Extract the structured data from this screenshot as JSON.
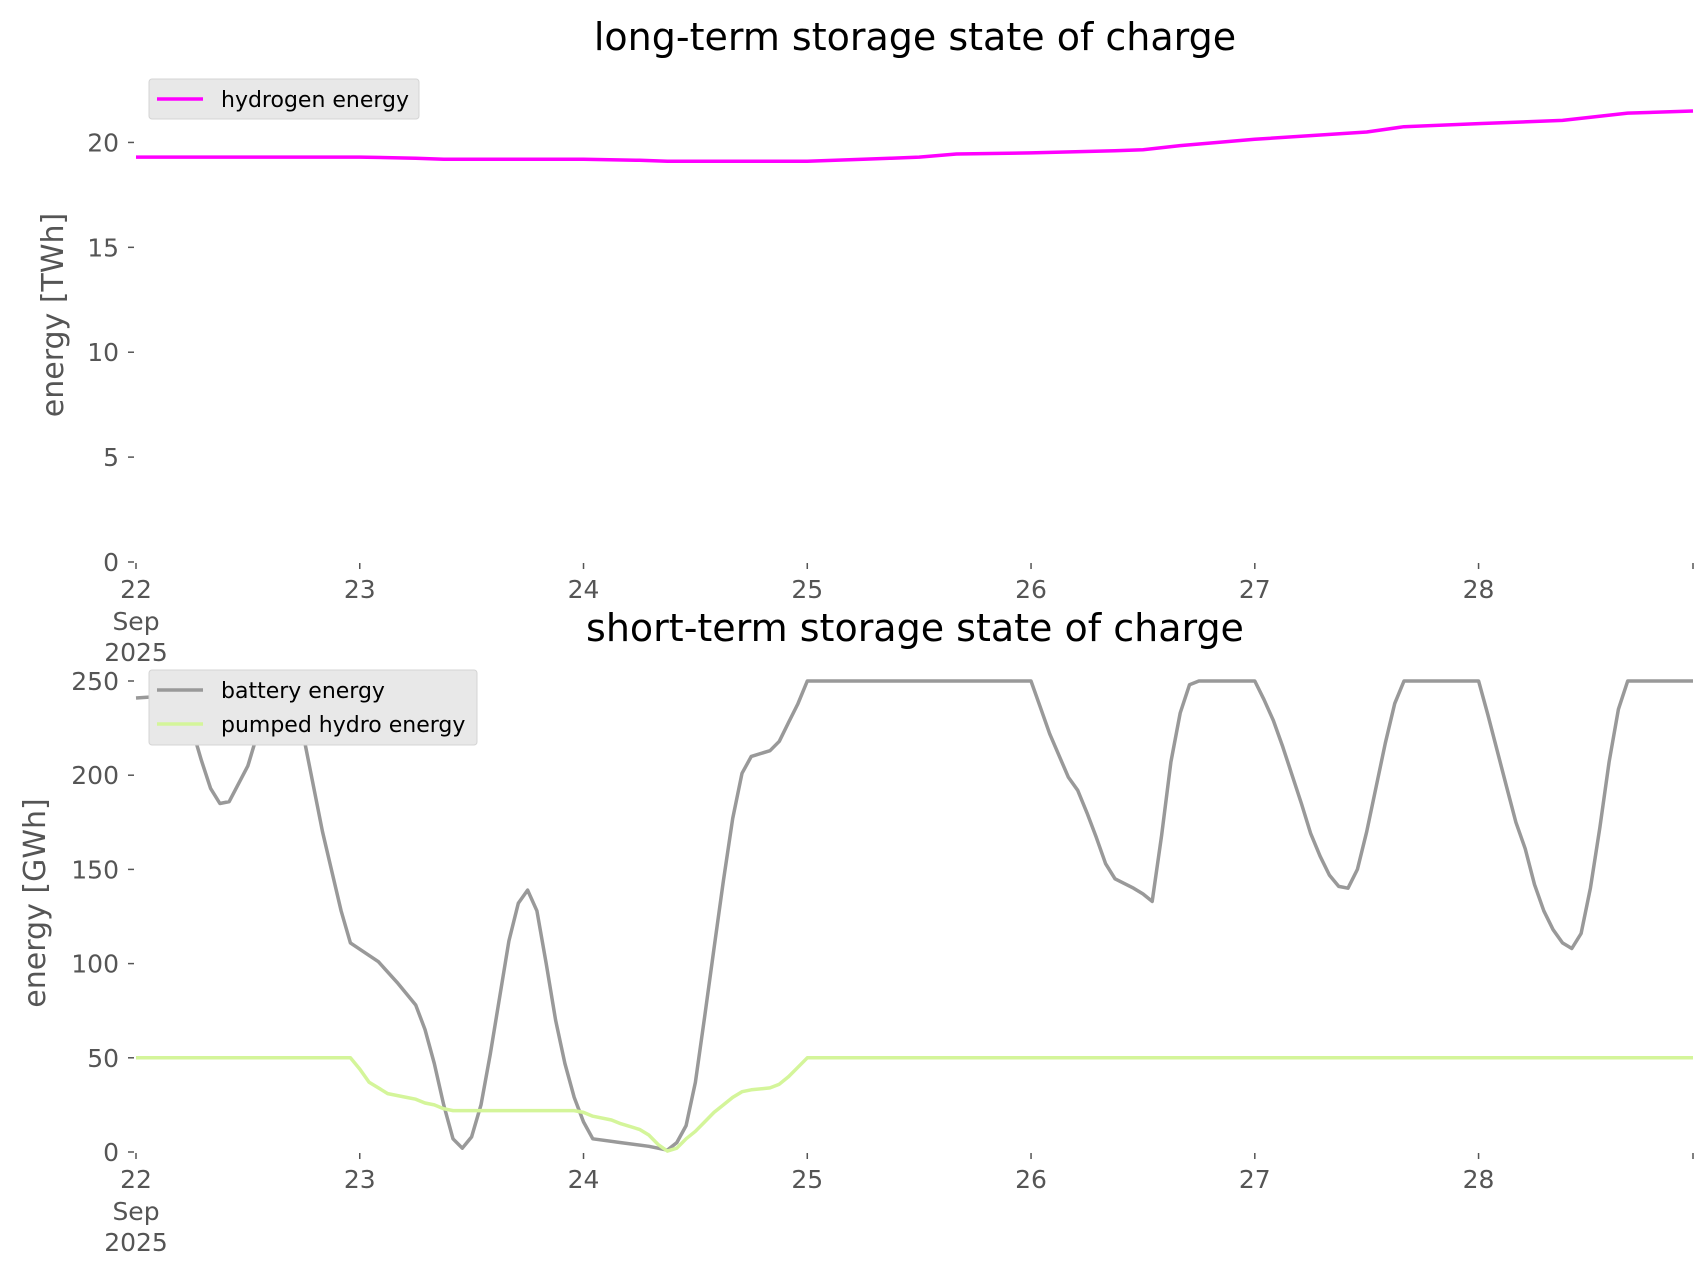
{
  "chart_data": [
    {
      "type": "line",
      "title": "long-term storage state of charge",
      "xlabel": "",
      "ylabel": "energy [TWh]",
      "ylim": [
        0,
        22.5
      ],
      "yticks": [
        "0",
        "5",
        "10",
        "15",
        "20"
      ],
      "xticks": [
        {
          "date": "2025-09-22",
          "label": "22",
          "sub": [
            "Sep",
            "2025"
          ]
        },
        {
          "date": "2025-09-23",
          "label": "23"
        },
        {
          "date": "2025-09-24",
          "label": "24"
        },
        {
          "date": "2025-09-25",
          "label": "25"
        },
        {
          "date": "2025-09-26",
          "label": "26"
        },
        {
          "date": "2025-09-27",
          "label": "27"
        },
        {
          "date": "2025-09-28",
          "label": "28"
        }
      ],
      "xlim": [
        "2025-09-22 00:00",
        "2025-09-28 23:00"
      ],
      "grid": false,
      "legend_position": "top-left",
      "series": [
        {
          "name": "hydrogen energy",
          "color": "#ff00ff",
          "points": [
            [
              "2025-09-22 00:00",
              19.3
            ],
            [
              "2025-09-22 12:00",
              19.3
            ],
            [
              "2025-09-23 00:00",
              19.3
            ],
            [
              "2025-09-23 06:00",
              19.25
            ],
            [
              "2025-09-23 09:00",
              19.2
            ],
            [
              "2025-09-23 18:00",
              19.2
            ],
            [
              "2025-09-24 00:00",
              19.2
            ],
            [
              "2025-09-24 06:00",
              19.15
            ],
            [
              "2025-09-24 09:00",
              19.1
            ],
            [
              "2025-09-24 18:00",
              19.1
            ],
            [
              "2025-09-25 00:00",
              19.1
            ],
            [
              "2025-09-25 06:00",
              19.2
            ],
            [
              "2025-09-25 09:00",
              19.25
            ],
            [
              "2025-09-25 12:00",
              19.3
            ],
            [
              "2025-09-25 16:00",
              19.45
            ],
            [
              "2025-09-26 00:00",
              19.5
            ],
            [
              "2025-09-26 09:00",
              19.6
            ],
            [
              "2025-09-26 12:00",
              19.65
            ],
            [
              "2025-09-26 16:00",
              19.85
            ],
            [
              "2025-09-27 00:00",
              20.15
            ],
            [
              "2025-09-27 12:00",
              20.5
            ],
            [
              "2025-09-27 16:00",
              20.75
            ],
            [
              "2025-09-28 00:00",
              20.9
            ],
            [
              "2025-09-28 09:00",
              21.05
            ],
            [
              "2025-09-28 16:00",
              21.4
            ],
            [
              "2025-09-28 23:00",
              21.5
            ]
          ]
        }
      ]
    },
    {
      "type": "line",
      "title": "short-term storage state of charge",
      "xlabel": "",
      "ylabel": "energy [GWh]",
      "ylim": [
        0,
        250
      ],
      "yticks": [
        "0",
        "50",
        "100",
        "150",
        "200",
        "250"
      ],
      "xticks": [
        {
          "date": "2025-09-22",
          "label": "22",
          "sub": [
            "Sep",
            "2025"
          ]
        },
        {
          "date": "2025-09-23",
          "label": "23"
        },
        {
          "date": "2025-09-24",
          "label": "24"
        },
        {
          "date": "2025-09-25",
          "label": "25"
        },
        {
          "date": "2025-09-26",
          "label": "26"
        },
        {
          "date": "2025-09-27",
          "label": "27"
        },
        {
          "date": "2025-09-28",
          "label": "28"
        }
      ],
      "xlim": [
        "2025-09-22 00:00",
        "2025-09-28 23:00"
      ],
      "grid": false,
      "legend_position": "top-left",
      "series": [
        {
          "name": "battery energy",
          "color": "#999999",
          "points": [
            [
              "2025-09-22 00:00",
              241
            ],
            [
              "2025-09-22 03:00",
              242
            ],
            [
              "2025-09-22 04:00",
              243
            ],
            [
              "2025-09-22 05:00",
              240
            ],
            [
              "2025-09-22 06:00",
              225
            ],
            [
              "2025-09-22 07:00",
              208
            ],
            [
              "2025-09-22 08:00",
              193
            ],
            [
              "2025-09-22 09:00",
              185
            ],
            [
              "2025-09-22 10:00",
              186
            ],
            [
              "2025-09-22 12:00",
              205
            ],
            [
              "2025-09-22 14:00",
              238
            ],
            [
              "2025-09-22 15:00",
              249
            ],
            [
              "2025-09-22 16:00",
              250
            ],
            [
              "2025-09-22 17:00",
              240
            ],
            [
              "2025-09-22 18:00",
              220
            ],
            [
              "2025-09-22 20:00",
              170
            ],
            [
              "2025-09-22 22:00",
              128
            ],
            [
              "2025-09-22 23:00",
              111
            ],
            [
              "2025-09-23 02:00",
              101
            ],
            [
              "2025-09-23 04:00",
              90
            ],
            [
              "2025-09-23 06:00",
              78
            ],
            [
              "2025-09-23 07:00",
              65
            ],
            [
              "2025-09-23 08:00",
              47
            ],
            [
              "2025-09-23 09:00",
              25
            ],
            [
              "2025-09-23 10:00",
              7
            ],
            [
              "2025-09-23 11:00",
              2
            ],
            [
              "2025-09-23 12:00",
              8
            ],
            [
              "2025-09-23 13:00",
              25
            ],
            [
              "2025-09-23 14:00",
              52
            ],
            [
              "2025-09-23 16:00",
              112
            ],
            [
              "2025-09-23 17:00",
              132
            ],
            [
              "2025-09-23 18:00",
              139
            ],
            [
              "2025-09-23 19:00",
              128
            ],
            [
              "2025-09-23 20:00",
              100
            ],
            [
              "2025-09-23 21:00",
              70
            ],
            [
              "2025-09-23 22:00",
              47
            ],
            [
              "2025-09-23 23:00",
              29
            ],
            [
              "2025-09-24 00:00",
              16
            ],
            [
              "2025-09-24 01:00",
              7
            ],
            [
              "2025-09-24 04:00",
              5
            ],
            [
              "2025-09-24 07:00",
              3
            ],
            [
              "2025-09-24 08:00",
              2
            ],
            [
              "2025-09-24 09:00",
              1
            ],
            [
              "2025-09-24 10:00",
              5
            ],
            [
              "2025-09-24 11:00",
              14
            ],
            [
              "2025-09-24 12:00",
              37
            ],
            [
              "2025-09-24 13:00",
              72
            ],
            [
              "2025-09-24 14:00",
              108
            ],
            [
              "2025-09-24 15:00",
              144
            ],
            [
              "2025-09-24 16:00",
              177
            ],
            [
              "2025-09-24 17:00",
              201
            ],
            [
              "2025-09-24 18:00",
              210
            ],
            [
              "2025-09-24 20:00",
              213
            ],
            [
              "2025-09-24 21:00",
              218
            ],
            [
              "2025-09-24 22:00",
              228
            ],
            [
              "2025-09-24 23:00",
              238
            ],
            [
              "2025-09-25 00:00",
              250
            ],
            [
              "2025-09-26 00:00",
              250
            ],
            [
              "2025-09-26 01:00",
              236
            ],
            [
              "2025-09-26 02:00",
              222
            ],
            [
              "2025-09-26 04:00",
              199
            ],
            [
              "2025-09-26 05:00",
              192
            ],
            [
              "2025-09-26 06:00",
              180
            ],
            [
              "2025-09-26 07:00",
              167
            ],
            [
              "2025-09-26 08:00",
              153
            ],
            [
              "2025-09-26 09:00",
              145
            ],
            [
              "2025-09-26 11:00",
              140
            ],
            [
              "2025-09-26 12:00",
              137
            ],
            [
              "2025-09-26 13:00",
              133
            ],
            [
              "2025-09-26 14:00",
              168
            ],
            [
              "2025-09-26 15:00",
              207
            ],
            [
              "2025-09-26 16:00",
              233
            ],
            [
              "2025-09-26 17:00",
              248
            ],
            [
              "2025-09-26 18:00",
              250
            ],
            [
              "2025-09-27 00:00",
              250
            ],
            [
              "2025-09-27 01:00",
              240
            ],
            [
              "2025-09-27 02:00",
              229
            ],
            [
              "2025-09-27 03:00",
              215
            ],
            [
              "2025-09-27 05:00",
              185
            ],
            [
              "2025-09-27 06:00",
              169
            ],
            [
              "2025-09-27 07:00",
              157
            ],
            [
              "2025-09-27 08:00",
              147
            ],
            [
              "2025-09-27 09:00",
              141
            ],
            [
              "2025-09-27 10:00",
              140
            ],
            [
              "2025-09-27 11:00",
              150
            ],
            [
              "2025-09-27 12:00",
              170
            ],
            [
              "2025-09-27 14:00",
              217
            ],
            [
              "2025-09-27 15:00",
              238
            ],
            [
              "2025-09-27 16:00",
              250
            ],
            [
              "2025-09-28 00:00",
              250
            ],
            [
              "2025-09-28 01:00",
              232
            ],
            [
              "2025-09-28 03:00",
              194
            ],
            [
              "2025-09-28 04:00",
              175
            ],
            [
              "2025-09-28 05:00",
              161
            ],
            [
              "2025-09-28 06:00",
              142
            ],
            [
              "2025-09-28 07:00",
              128
            ],
            [
              "2025-09-28 08:00",
              118
            ],
            [
              "2025-09-28 09:00",
              111
            ],
            [
              "2025-09-28 10:00",
              108
            ],
            [
              "2025-09-28 11:00",
              116
            ],
            [
              "2025-09-28 12:00",
              140
            ],
            [
              "2025-09-28 13:00",
              172
            ],
            [
              "2025-09-28 14:00",
              207
            ],
            [
              "2025-09-28 15:00",
              235
            ],
            [
              "2025-09-28 16:00",
              250
            ],
            [
              "2025-09-28 23:00",
              250
            ]
          ]
        },
        {
          "name": "pumped hydro energy",
          "color": "#d4f59a",
          "points": [
            [
              "2025-09-22 00:00",
              50
            ],
            [
              "2025-09-22 23:00",
              50
            ],
            [
              "2025-09-23 00:00",
              44
            ],
            [
              "2025-09-23 01:00",
              37
            ],
            [
              "2025-09-23 02:00",
              34
            ],
            [
              "2025-09-23 03:00",
              31
            ],
            [
              "2025-09-23 05:00",
              29
            ],
            [
              "2025-09-23 06:00",
              28
            ],
            [
              "2025-09-23 07:00",
              26
            ],
            [
              "2025-09-23 08:00",
              25
            ],
            [
              "2025-09-23 09:00",
              23
            ],
            [
              "2025-09-23 10:00",
              22
            ],
            [
              "2025-09-23 12:00",
              22
            ],
            [
              "2025-09-23 23:00",
              22
            ],
            [
              "2025-09-24 00:00",
              21
            ],
            [
              "2025-09-24 01:00",
              19
            ],
            [
              "2025-09-24 03:00",
              17
            ],
            [
              "2025-09-24 04:00",
              15
            ],
            [
              "2025-09-24 06:00",
              12
            ],
            [
              "2025-09-24 07:00",
              9
            ],
            [
              "2025-09-24 08:00",
              4
            ],
            [
              "2025-09-24 09:00",
              0.5
            ],
            [
              "2025-09-24 10:00",
              2
            ],
            [
              "2025-09-24 11:00",
              7
            ],
            [
              "2025-09-24 12:00",
              11
            ],
            [
              "2025-09-24 13:00",
              16
            ],
            [
              "2025-09-24 14:00",
              21
            ],
            [
              "2025-09-24 15:00",
              25
            ],
            [
              "2025-09-24 16:00",
              29
            ],
            [
              "2025-09-24 17:00",
              32
            ],
            [
              "2025-09-24 18:00",
              33
            ],
            [
              "2025-09-24 20:00",
              34
            ],
            [
              "2025-09-24 21:00",
              36
            ],
            [
              "2025-09-24 22:00",
              40
            ],
            [
              "2025-09-24 23:00",
              45
            ],
            [
              "2025-09-25 00:00",
              50
            ],
            [
              "2025-09-28 23:00",
              50
            ]
          ]
        }
      ]
    }
  ]
}
